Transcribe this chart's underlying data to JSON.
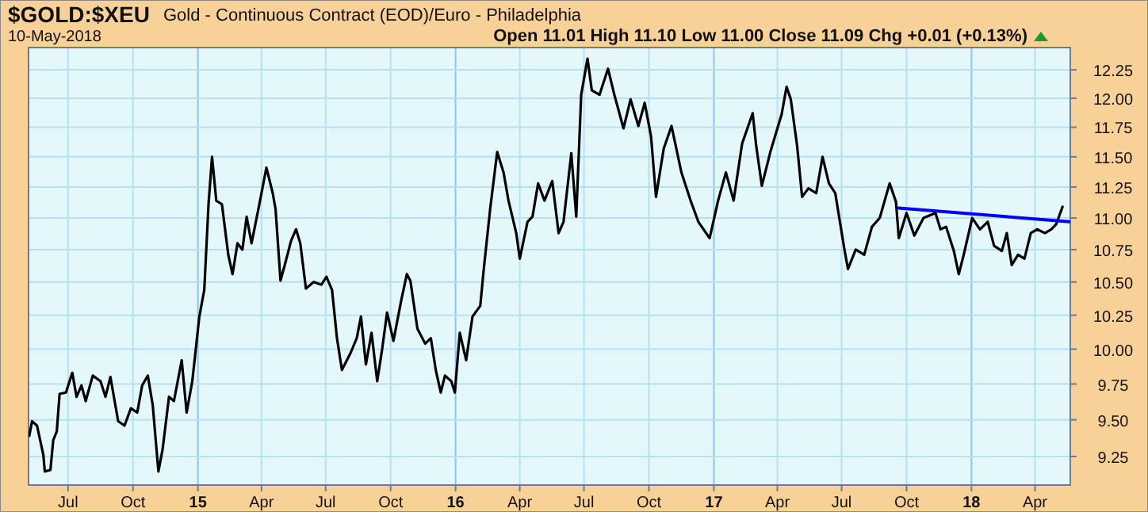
{
  "chart_data": {
    "type": "line",
    "title": "$GOLD:$XEU",
    "subtitle": "Gold - Continuous Contract (EOD)/Euro - Philadelphia",
    "annotations": [
      "10-May-2018",
      "Open 11.01 High 11.10 Low 11.00 Close 11.09 Chg +0.01 (+0.13%)"
    ],
    "log": "y",
    "grid": true,
    "marker": "none",
    "line_style": "solid",
    "xlim": [
      "2014-05-06",
      "2018-05-21"
    ],
    "xticks": [
      {
        "value": "2014-07-01",
        "label": "Jul"
      },
      {
        "value": "2014-10-01",
        "label": "Oct"
      },
      {
        "value": "2015-01-01",
        "label": "15"
      },
      {
        "value": "2015-04-01",
        "label": "Apr"
      },
      {
        "value": "2015-07-01",
        "label": "Jul"
      },
      {
        "value": "2015-10-01",
        "label": "Oct"
      },
      {
        "value": "2016-01-01",
        "label": "16"
      },
      {
        "value": "2016-04-01",
        "label": "Apr"
      },
      {
        "value": "2016-07-01",
        "label": "Jul"
      },
      {
        "value": "2016-10-01",
        "label": "Oct"
      },
      {
        "value": "2017-01-01",
        "label": "17"
      },
      {
        "value": "2017-04-01",
        "label": "Apr"
      },
      {
        "value": "2017-07-01",
        "label": "Jul"
      },
      {
        "value": "2017-10-01",
        "label": "Oct"
      },
      {
        "value": "2018-01-01",
        "label": "18"
      },
      {
        "value": "2018-04-01",
        "label": "Apr"
      }
    ],
    "ylim": [
      9.06,
      12.45
    ],
    "yticks": [
      {
        "value": 9.25,
        "label": "9.25"
      },
      {
        "value": 9.5,
        "label": "9.50"
      },
      {
        "value": 9.75,
        "label": "9.75"
      },
      {
        "value": 10,
        "label": "10.00"
      },
      {
        "value": 10.25,
        "label": "10.25"
      },
      {
        "value": 10.5,
        "label": "10.50"
      },
      {
        "value": 10.75,
        "label": "10.75"
      },
      {
        "value": 11,
        "label": "11.00"
      },
      {
        "value": 11.25,
        "label": "11.25"
      },
      {
        "value": 11.5,
        "label": "11.50"
      },
      {
        "value": 11.75,
        "label": "11.75"
      },
      {
        "value": 12,
        "label": "12.00"
      },
      {
        "value": 12.25,
        "label": "12.25"
      }
    ],
    "series": [
      {
        "color": "#000000",
        "x": [
          "2014-05-07",
          "2014-05-11",
          "2014-05-18",
          "2014-05-27",
          "2014-05-29",
          "2014-06-06",
          "2014-06-10",
          "2014-06-15",
          "2014-06-19",
          "2014-06-28",
          "2014-07-07",
          "2014-07-13",
          "2014-07-20",
          "2014-07-26",
          "2014-08-05",
          "2014-08-16",
          "2014-08-23",
          "2014-08-30",
          "2014-09-10",
          "2014-09-19",
          "2014-09-28",
          "2014-10-07",
          "2014-10-14",
          "2014-10-22",
          "2014-10-29",
          "2014-11-06",
          "2014-11-12",
          "2014-11-21",
          "2014-11-28",
          "2014-12-09",
          "2014-12-16",
          "2014-12-24",
          "2015-01-03",
          "2015-01-10",
          "2015-01-16",
          "2015-01-21",
          "2015-01-27",
          "2015-02-04",
          "2015-02-13",
          "2015-02-19",
          "2015-02-26",
          "2015-03-05",
          "2015-03-11",
          "2015-03-18",
          "2015-03-29",
          "2015-04-08",
          "2015-04-17",
          "2015-04-21",
          "2015-04-28",
          "2015-05-04",
          "2015-05-13",
          "2015-05-20",
          "2015-05-26",
          "2015-06-03",
          "2015-06-14",
          "2015-06-25",
          "2015-07-02",
          "2015-07-10",
          "2015-07-17",
          "2015-07-24",
          "2015-08-05",
          "2015-08-14",
          "2015-08-20",
          "2015-08-27",
          "2015-09-04",
          "2015-09-12",
          "2015-09-19",
          "2015-09-26",
          "2015-10-05",
          "2015-10-16",
          "2015-10-24",
          "2015-10-29",
          "2015-11-08",
          "2015-11-19",
          "2015-11-27",
          "2015-12-04",
          "2015-12-11",
          "2015-12-17",
          "2015-12-26",
          "2015-12-31",
          "2016-01-07",
          "2016-01-16",
          "2016-01-25",
          "2016-02-05",
          "2016-02-10",
          "2016-02-19",
          "2016-02-29",
          "2016-03-09",
          "2016-03-16",
          "2016-03-27",
          "2016-04-01",
          "2016-04-12",
          "2016-04-19",
          "2016-04-27",
          "2016-05-06",
          "2016-05-17",
          "2016-05-26",
          "2016-06-02",
          "2016-06-13",
          "2016-06-20",
          "2016-06-27",
          "2016-07-04",
          "2016-07-06",
          "2016-07-12",
          "2016-07-23",
          "2016-08-04",
          "2016-08-13",
          "2016-08-26",
          "2016-09-05",
          "2016-09-16",
          "2016-09-25",
          "2016-10-04",
          "2016-10-11",
          "2016-10-22",
          "2016-11-02",
          "2016-11-16",
          "2016-11-29",
          "2016-12-10",
          "2016-12-26",
          "2017-01-07",
          "2017-01-18",
          "2017-01-29",
          "2017-02-10",
          "2017-02-25",
          "2017-03-02",
          "2017-03-10",
          "2017-03-22",
          "2017-04-07",
          "2017-04-14",
          "2017-04-20",
          "2017-04-29",
          "2017-05-06",
          "2017-05-15",
          "2017-05-26",
          "2017-06-04",
          "2017-06-13",
          "2017-06-22",
          "2017-07-05",
          "2017-07-10",
          "2017-07-21",
          "2017-08-02",
          "2017-08-13",
          "2017-08-24",
          "2017-09-07",
          "2017-09-16",
          "2017-09-20",
          "2017-10-01",
          "2017-10-12",
          "2017-10-25",
          "2017-11-11",
          "2017-11-18",
          "2017-11-26",
          "2017-12-07",
          "2017-12-14",
          "2017-12-21",
          "2018-01-02",
          "2018-01-13",
          "2018-01-24",
          "2018-02-02",
          "2018-02-13",
          "2018-02-20",
          "2018-02-27",
          "2018-03-08",
          "2018-03-17",
          "2018-03-26",
          "2018-04-04",
          "2018-04-15",
          "2018-04-24",
          "2018-05-01",
          "2018-05-10"
        ],
        "values": [
          9.39,
          9.49,
          9.46,
          9.26,
          9.15,
          9.16,
          9.36,
          9.42,
          9.68,
          9.69,
          9.83,
          9.66,
          9.74,
          9.63,
          9.81,
          9.77,
          9.66,
          9.8,
          9.49,
          9.46,
          9.58,
          9.55,
          9.74,
          9.81,
          9.6,
          9.15,
          9.3,
          9.66,
          9.63,
          9.92,
          9.55,
          9.77,
          10.24,
          10.44,
          11.11,
          11.5,
          11.14,
          11.11,
          10.71,
          10.56,
          10.8,
          10.75,
          11.01,
          10.8,
          11.11,
          11.41,
          11.2,
          11.07,
          10.51,
          10.63,
          10.82,
          10.91,
          10.8,
          10.45,
          10.5,
          10.48,
          10.54,
          10.44,
          10.08,
          9.85,
          9.97,
          10.08,
          10.24,
          9.89,
          10.12,
          9.77,
          10.0,
          10.27,
          10.06,
          10.36,
          10.56,
          10.51,
          10.15,
          10.04,
          10.08,
          9.85,
          9.69,
          9.81,
          9.77,
          9.69,
          10.12,
          9.92,
          10.24,
          10.32,
          10.6,
          11.07,
          11.54,
          11.37,
          11.14,
          10.88,
          10.68,
          10.97,
          11.01,
          11.28,
          11.14,
          11.3,
          10.88,
          10.97,
          11.53,
          11.01,
          12.03,
          12.28,
          12.35,
          12.07,
          12.03,
          12.26,
          12.03,
          11.74,
          11.99,
          11.76,
          11.96,
          11.67,
          11.17,
          11.57,
          11.76,
          11.37,
          11.14,
          10.97,
          10.84,
          11.14,
          11.37,
          11.14,
          11.61,
          11.87,
          11.59,
          11.26,
          11.54,
          11.86,
          12.1,
          11.99,
          11.59,
          11.17,
          11.24,
          11.2,
          11.5,
          11.28,
          11.2,
          10.75,
          10.6,
          10.75,
          10.71,
          10.93,
          11.0,
          11.28,
          11.13,
          10.84,
          11.04,
          10.86,
          11.0,
          11.04,
          10.91,
          10.93,
          10.74,
          10.56,
          10.71,
          11.0,
          10.91,
          10.97,
          10.78,
          10.74,
          10.88,
          10.63,
          10.71,
          10.68,
          10.88,
          10.91,
          10.88,
          10.91,
          10.95,
          11.09
        ]
      },
      {
        "type": "line",
        "color": "#0000ff",
        "x": [
          "2017-09-20",
          "2018-05-20"
        ],
        "values": [
          11.08,
          10.97
        ]
      }
    ]
  }
}
